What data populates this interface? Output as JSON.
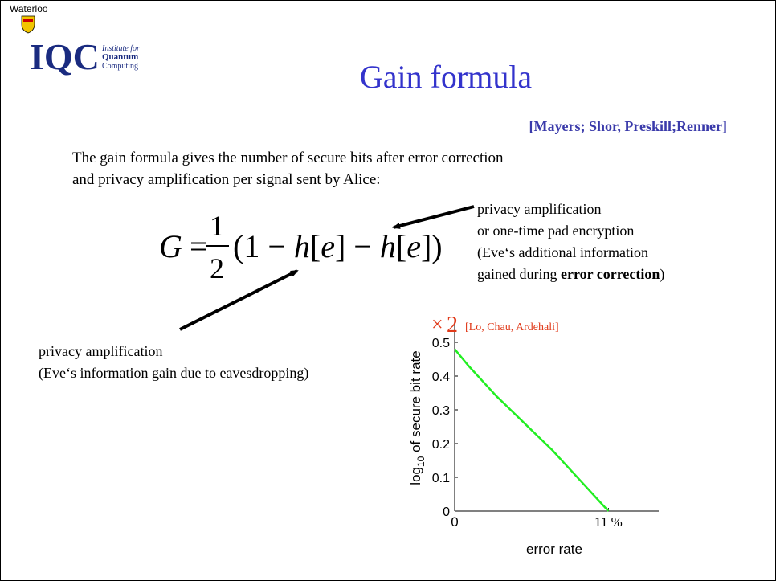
{
  "header": {
    "university": "Waterloo",
    "logo_letters": "IQC",
    "logo_lines": [
      "Institute for",
      "Quantum",
      "Computing"
    ],
    "title": "Gain formula",
    "citation": "[Mayers; Shor, Preskill;Renner]"
  },
  "body": {
    "lines": [
      "The gain formula gives the number of secure bits after error correction",
      "and privacy amplification per signal sent by Alice:"
    ]
  },
  "formula": {
    "lhs": "G",
    "equals": "=",
    "numerator": "1",
    "denominator": "2",
    "parts": [
      "(1 − ",
      "h",
      "[",
      "e",
      "] − ",
      "h",
      "[",
      "e",
      "])"
    ]
  },
  "annotations": {
    "right": {
      "lines": [
        "privacy amplification",
        "or one-time pad encryption",
        "(Eve‘s additional information"
      ],
      "last_line": [
        "gained during ",
        "error correction",
        ")"
      ]
    },
    "left": {
      "lines": [
        "privacy amplification",
        "(Eve‘s information gain due to eavesdropping)"
      ]
    }
  },
  "chart_data": {
    "type": "line",
    "x_label": "error rate",
    "y_label": {
      "main": "log",
      "sub": "10",
      "rest": " of secure bit rate"
    },
    "annotation": {
      "sign": "×",
      "factor": "2",
      "source": "[Lo, Chau, Ardehali]"
    },
    "x": [
      0,
      1,
      2,
      3,
      4,
      5,
      6,
      7,
      8,
      9,
      10,
      11
    ],
    "series": [
      {
        "name": "secure bit rate",
        "color": "#22ee22",
        "values": [
          0.48,
          0.43,
          0.385,
          0.34,
          0.3,
          0.26,
          0.22,
          0.18,
          0.135,
          0.09,
          0.045,
          0
        ]
      }
    ],
    "xlim": [
      0,
      14.6
    ],
    "ylim": [
      0,
      0.55
    ],
    "xticks": [
      0,
      {
        "value": 11,
        "label": "11 %"
      }
    ],
    "yticks": [
      0,
      0.1,
      0.2,
      0.3,
      0.4,
      0.5
    ]
  }
}
